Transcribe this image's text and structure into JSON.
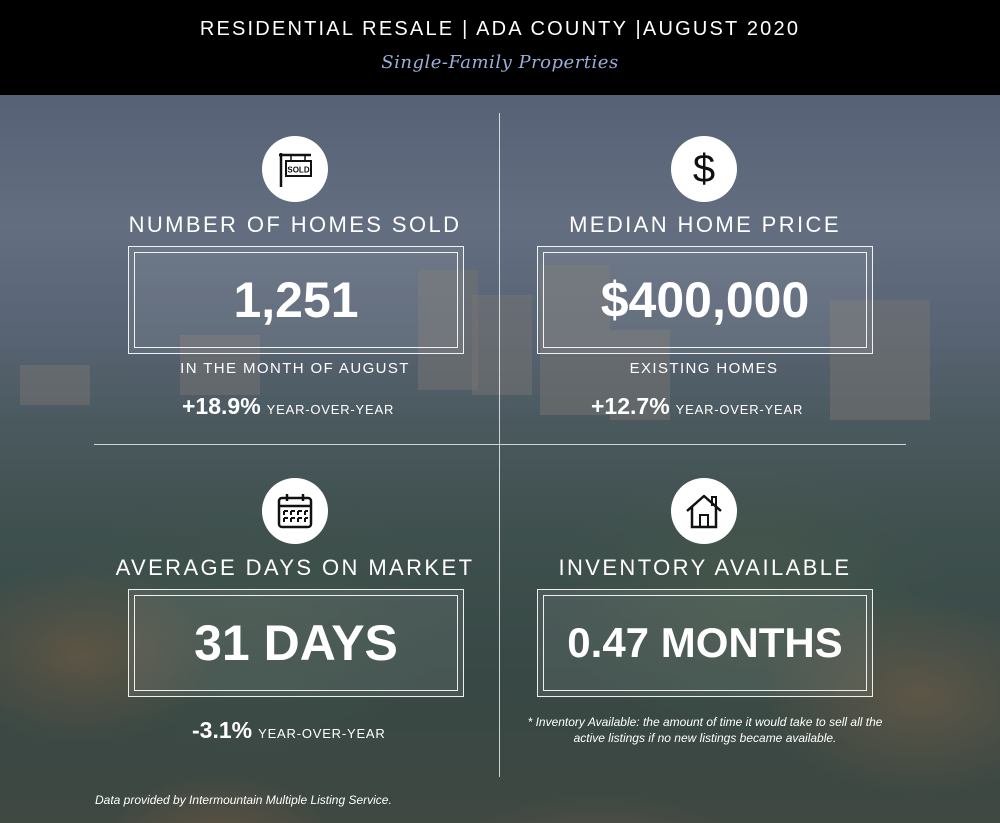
{
  "header": {
    "title": "RESIDENTIAL RESALE | ADA COUNTY |AUGUST 2020",
    "subtitle": "Single-Family Properties"
  },
  "stats": {
    "homes_sold": {
      "icon": "sold-sign-icon",
      "label": "NUMBER OF HOMES SOLD",
      "value": "1,251",
      "sublabel": "IN THE MONTH OF AUGUST",
      "change": "+18.9%",
      "change_label": "YEAR-OVER-YEAR",
      "sign_text": "SOLD"
    },
    "median_price": {
      "icon": "dollar-icon",
      "label": "MEDIAN HOME PRICE",
      "value": "$400,000",
      "sublabel": "EXISTING HOMES",
      "change": "+12.7%",
      "change_label": "YEAR-OVER-YEAR",
      "icon_glyph": "$"
    },
    "days_on_market": {
      "icon": "calendar-icon",
      "label": "AVERAGE DAYS ON MARKET",
      "value": "31 DAYS",
      "change": "-3.1%",
      "change_label": "YEAR-OVER-YEAR"
    },
    "inventory": {
      "icon": "house-icon",
      "label": "INVENTORY AVAILABLE",
      "value": "0.47 MONTHS",
      "note": "* Inventory Available:  the amount of time it would take to sell all the active listings if no new listings became available."
    }
  },
  "footer": {
    "source": "Data provided by Intermountain Multiple Listing Service."
  }
}
